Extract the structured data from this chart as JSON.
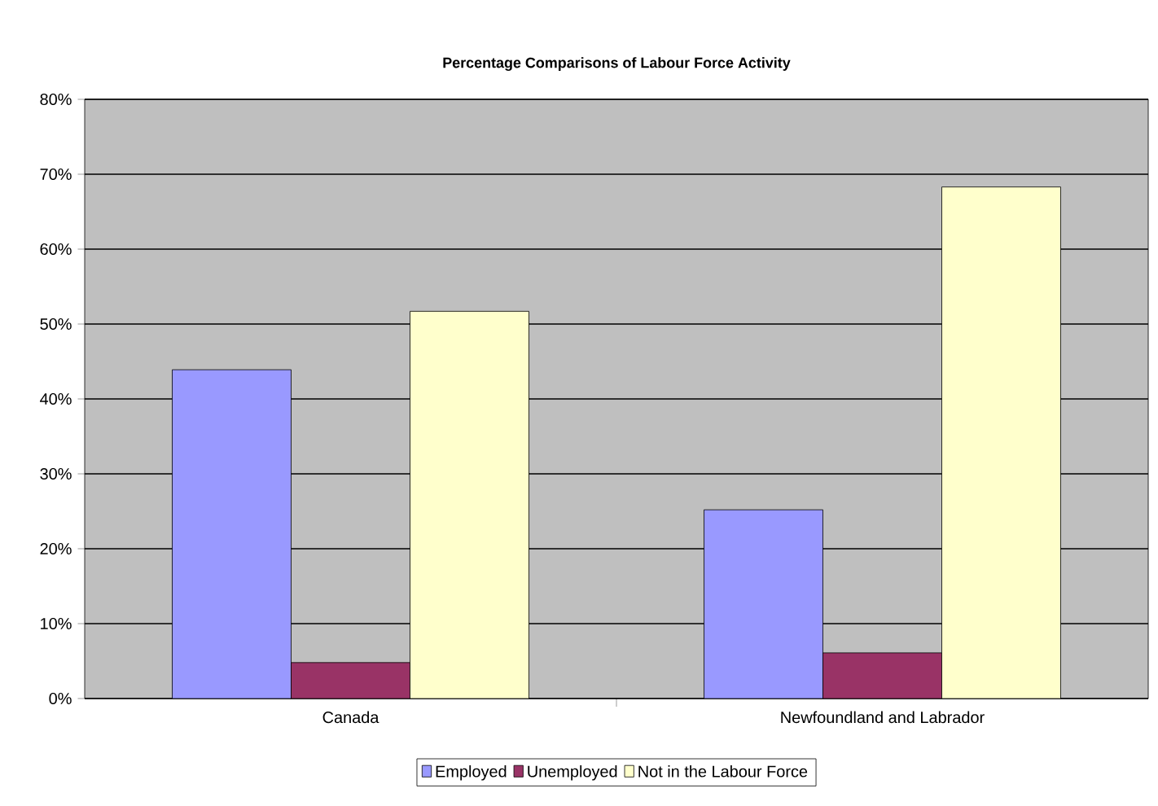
{
  "chart_data": {
    "type": "bar",
    "title": "Percentage Comparisons of Labour Force Activity",
    "categories": [
      "Canada",
      "Newfoundland and Labrador"
    ],
    "series": [
      {
        "name": "Employed",
        "color": "#9999ff",
        "values": [
          43.9,
          25.2
        ]
      },
      {
        "name": "Unemployed",
        "color": "#993366",
        "values": [
          4.8,
          6.1
        ]
      },
      {
        "name": "Not in the Labour Force",
        "color": "#ffffcc",
        "values": [
          51.7,
          68.3
        ]
      }
    ],
    "ylim": [
      0,
      80
    ],
    "yticks": [
      {
        "value": 0,
        "label": "0%"
      },
      {
        "value": 10,
        "label": "10%"
      },
      {
        "value": 20,
        "label": "20%"
      },
      {
        "value": 30,
        "label": "30%"
      },
      {
        "value": 40,
        "label": "40%"
      },
      {
        "value": 50,
        "label": "50%"
      },
      {
        "value": 60,
        "label": "60%"
      },
      {
        "value": 70,
        "label": "70%"
      },
      {
        "value": 80,
        "label": "80%"
      }
    ],
    "grid": "y",
    "legend": "bottom"
  }
}
